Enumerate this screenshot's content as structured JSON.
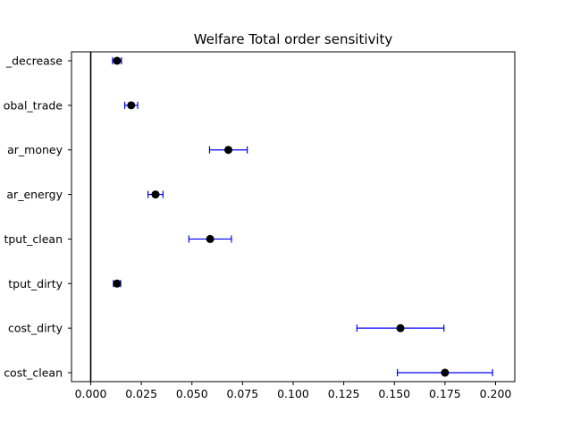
{
  "chart_data": {
    "type": "scatter",
    "title": "Welfare Total order sensitivity",
    "xlabel": "",
    "ylabel": "",
    "xlim": [
      -0.0095,
      0.2095
    ],
    "x_ticks": [
      0.0,
      0.025,
      0.05,
      0.075,
      0.1,
      0.125,
      0.15,
      0.175,
      0.2
    ],
    "x_tick_labels": [
      "0.000",
      "0.025",
      "0.050",
      "0.075",
      "0.100",
      "0.125",
      "0.150",
      "0.175",
      "0.200"
    ],
    "vertical_line_x": 0.0,
    "grid": false,
    "categories": [
      "_decrease",
      "obal_trade",
      "ar_money",
      "ar_energy",
      "tput_clean",
      "tput_dirty",
      "cost_dirty",
      "cost_clean"
    ],
    "values": [
      0.013,
      0.02,
      0.068,
      0.032,
      0.059,
      0.013,
      0.153,
      0.175
    ],
    "errors": [
      0.0022,
      0.0032,
      0.0093,
      0.0037,
      0.0105,
      0.0018,
      0.0215,
      0.0235
    ],
    "marker_color": "#000000",
    "errorbar_color": "#0000ff"
  }
}
